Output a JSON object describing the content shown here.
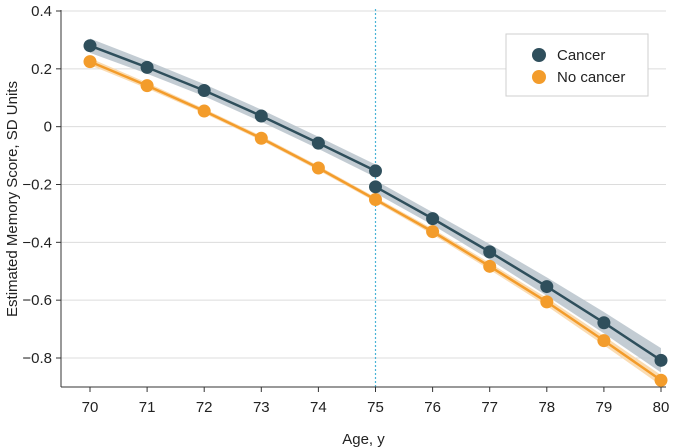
{
  "chart_data": {
    "type": "line",
    "title": "",
    "xlabel": "Age, y",
    "ylabel": "Estimated Memory Score, SD Units",
    "xlim": [
      70,
      80
    ],
    "ylim": [
      -0.9,
      0.4
    ],
    "x_ticks": [
      70,
      71,
      72,
      73,
      74,
      75,
      76,
      77,
      78,
      79,
      80
    ],
    "y_ticks": [
      0.4,
      0.2,
      0,
      -0.2,
      -0.4,
      -0.6,
      -0.8
    ],
    "y_tick_labels": [
      "0.4",
      "0.2",
      "0",
      "−0.2",
      "−0.4",
      "−0.6",
      "−0.8"
    ],
    "grid": "horizontal",
    "reference_line": {
      "x": 75,
      "style": "dotted",
      "color": "#4ab3d6"
    },
    "legend_position": "top-right",
    "series": [
      {
        "name": "Cancer",
        "color": "#2f4f5c",
        "band_color": "#b9c3cb",
        "segments": [
          {
            "x": [
              70,
              71,
              72,
              73,
              74,
              75
            ],
            "y": [
              0.28,
              0.205,
              0.125,
              0.037,
              -0.057,
              -0.153
            ],
            "ci_lower": [
              0.255,
              0.183,
              0.105,
              0.017,
              -0.077,
              -0.175
            ],
            "ci_upper": [
              0.305,
              0.228,
              0.147,
              0.059,
              -0.035,
              -0.131
            ]
          },
          {
            "x": [
              75,
              76,
              77,
              78,
              79,
              80
            ],
            "y": [
              -0.208,
              -0.318,
              -0.433,
              -0.553,
              -0.678,
              -0.808
            ],
            "ci_lower": [
              -0.23,
              -0.34,
              -0.46,
              -0.585,
              -0.715,
              -0.85
            ],
            "ci_upper": [
              -0.186,
              -0.296,
              -0.406,
              -0.521,
              -0.641,
              -0.766
            ]
          }
        ]
      },
      {
        "name": "No cancer",
        "color": "#f39c2b",
        "band_color": "#f9d6a6",
        "segments": [
          {
            "x": [
              70,
              71,
              72,
              73,
              74,
              75,
              76,
              77,
              78,
              79,
              80
            ],
            "y": [
              0.225,
              0.142,
              0.054,
              -0.04,
              -0.143,
              -0.252,
              -0.363,
              -0.483,
              -0.606,
              -0.74,
              -0.877
            ],
            "ci_lower": [
              0.213,
              0.132,
              0.046,
              -0.048,
              -0.151,
              -0.26,
              -0.373,
              -0.495,
              -0.62,
              -0.756,
              -0.895
            ],
            "ci_upper": [
              0.237,
              0.152,
              0.062,
              -0.032,
              -0.135,
              -0.244,
              -0.353,
              -0.471,
              -0.592,
              -0.724,
              -0.859
            ]
          }
        ]
      }
    ]
  }
}
